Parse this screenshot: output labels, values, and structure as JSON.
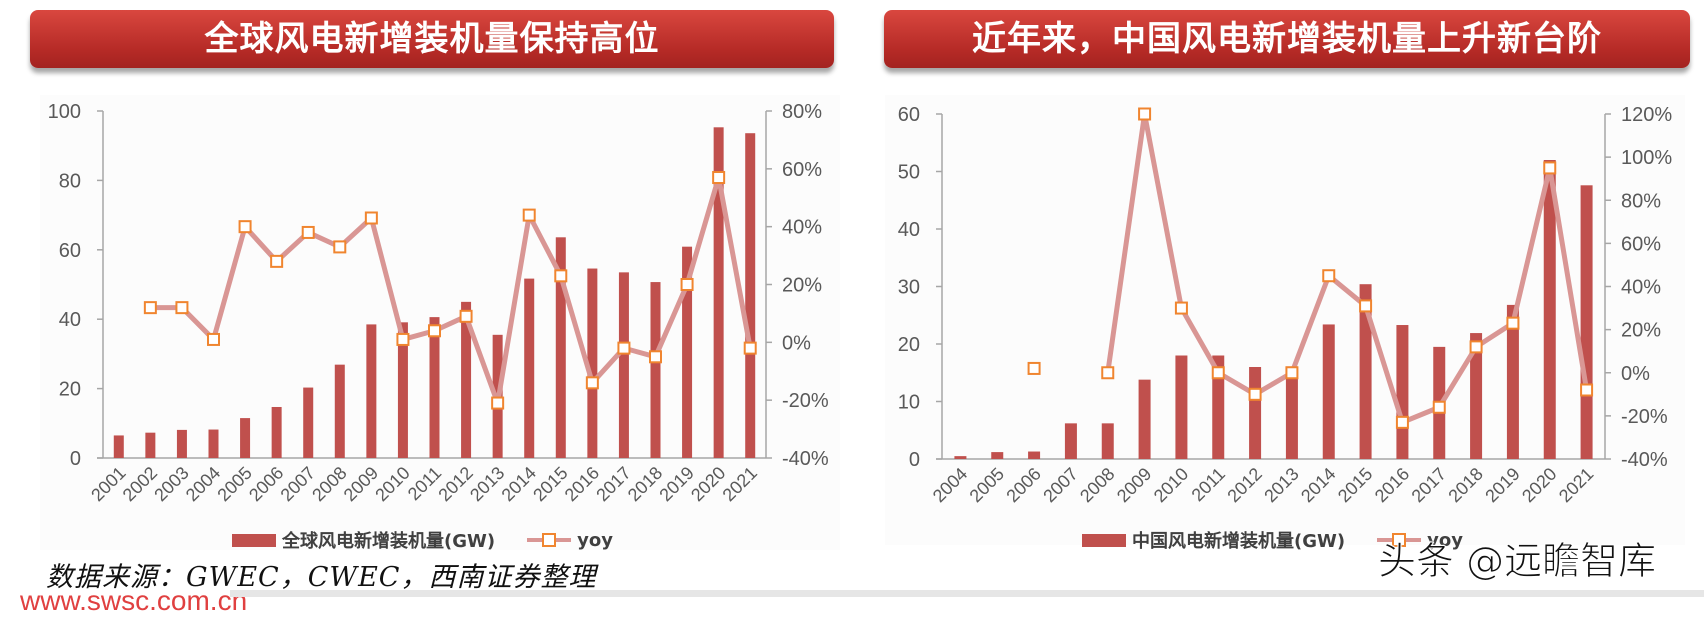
{
  "banners": {
    "left": "全球风电新增装机量保持高位",
    "right": "近年来，中国风电新增装机量上升新台阶"
  },
  "legend": {
    "left_bar": "全球风电新增装机量(GW)",
    "left_line": "yoy",
    "right_bar": "中国风电新增装机量(GW)",
    "right_line": "yoy"
  },
  "source": "数据来源：GWEC，CWEC，西南证券整理",
  "url": "www.swsc.com.cn",
  "watermark": "头条 @远瞻智库",
  "colors": {
    "bar": "#c0504d",
    "line": "#d99694",
    "marker": "#f0852f",
    "axis": "#a6a6a6",
    "text": "#595959"
  },
  "chart_data": [
    {
      "type": "bar+line",
      "title": "全球风电新增装机量保持高位",
      "categories": [
        "2001",
        "2002",
        "2003",
        "2004",
        "2005",
        "2006",
        "2007",
        "2008",
        "2009",
        "2010",
        "2011",
        "2012",
        "2013",
        "2014",
        "2015",
        "2016",
        "2017",
        "2018",
        "2019",
        "2020",
        "2021"
      ],
      "series": [
        {
          "name": "全球风电新增装机量(GW)",
          "type": "bar",
          "axis": "left",
          "values": [
            6.5,
            7.3,
            8.1,
            8.2,
            11.5,
            14.7,
            20.3,
            26.9,
            38.5,
            39.1,
            40.6,
            45.0,
            35.5,
            51.7,
            63.6,
            54.6,
            53.5,
            50.7,
            60.9,
            95.3,
            93.6
          ]
        },
        {
          "name": "yoy",
          "type": "line",
          "axis": "right",
          "unit": "%",
          "values": [
            null,
            12,
            12,
            1,
            40,
            28,
            38,
            33,
            43,
            1,
            4,
            9,
            -21,
            44,
            23,
            -14,
            -2,
            -5,
            20,
            57,
            -2
          ]
        }
      ],
      "left_axis": {
        "min": 0,
        "max": 100,
        "ticks": [
          "0",
          "20",
          "40",
          "60",
          "80",
          "100"
        ]
      },
      "right_axis": {
        "min": -40,
        "max": 80,
        "ticks": [
          "-40%",
          "-20%",
          "0%",
          "20%",
          "40%",
          "60%",
          "80%"
        ]
      },
      "grid": false,
      "legend_position": "bottom"
    },
    {
      "type": "bar+line",
      "title": "近年来，中国风电新增装机量上升新台阶",
      "categories": [
        "2004",
        "2005",
        "2006",
        "2007",
        "2008",
        "2009",
        "2010",
        "2011",
        "2012",
        "2013",
        "2014",
        "2015",
        "2016",
        "2017",
        "2018",
        "2019",
        "2020",
        "2021"
      ],
      "series": [
        {
          "name": "中国风电新增装机量(GW)",
          "type": "bar",
          "axis": "left",
          "values": [
            0.5,
            1.2,
            1.3,
            6.2,
            6.2,
            13.8,
            18.0,
            18.0,
            16.0,
            16.1,
            23.4,
            30.4,
            23.3,
            19.5,
            21.9,
            26.8,
            52.0,
            47.6
          ]
        },
        {
          "name": "yoy",
          "type": "line",
          "axis": "right",
          "unit": "%",
          "values": [
            null,
            null,
            2,
            null,
            0,
            120,
            30,
            0,
            -10,
            0,
            45,
            31,
            -23,
            -16,
            12,
            23,
            95,
            -8
          ]
        }
      ],
      "left_axis": {
        "min": 0,
        "max": 60,
        "ticks": [
          "0",
          "10",
          "20",
          "30",
          "40",
          "50",
          "60"
        ]
      },
      "right_axis": {
        "min": -40,
        "max": 120,
        "ticks": [
          "-40%",
          "-20%",
          "0%",
          "20%",
          "40%",
          "60%",
          "80%",
          "100%",
          "120%"
        ]
      },
      "grid": false,
      "legend_position": "bottom"
    }
  ]
}
